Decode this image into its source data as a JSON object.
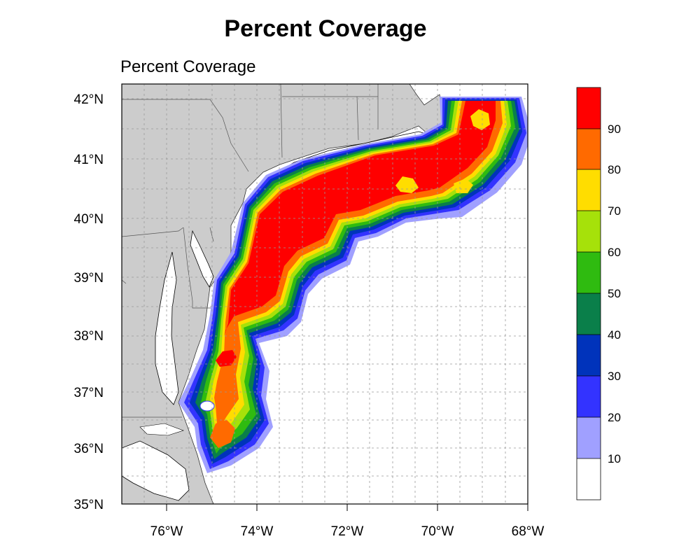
{
  "title": "Percent Coverage",
  "subtitle": "Percent Coverage",
  "map": {
    "lon_range": [
      -77,
      -68
    ],
    "lat_range": [
      35,
      42.2
    ],
    "lon_ticks": [
      "76°W",
      "74°W",
      "72°W",
      "70°W",
      "68°W"
    ],
    "lat_ticks": [
      "35°N",
      "36°N",
      "37°N",
      "38°N",
      "39°N",
      "40°N",
      "41°N",
      "42°N"
    ],
    "grid": "dashed"
  },
  "colorbar": {
    "labels": [
      "10",
      "20",
      "30",
      "40",
      "50",
      "60",
      "70",
      "80",
      "90"
    ],
    "colors": [
      "#ffffff",
      "#a0a0ff",
      "#3333ff",
      "#0033bb",
      "#0a7f4a",
      "#2fbb10",
      "#a6e10a",
      "#ffdd00",
      "#ff6a00",
      "#ff0000"
    ]
  },
  "colors": {
    "land": "#cccccc",
    "ocean": "#ffffff"
  }
}
